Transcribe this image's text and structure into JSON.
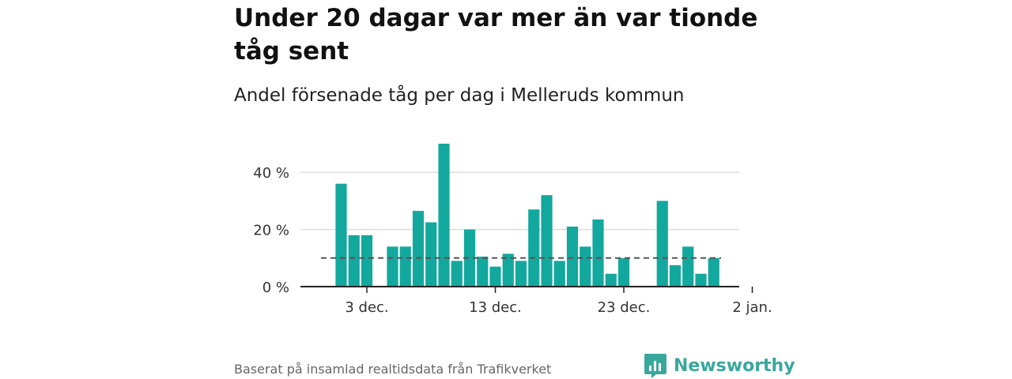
{
  "title": "Under 20 dagar var mer än var tionde tåg sent",
  "subtitle": "Andel försenade tåg per dag i Melleruds kommun",
  "footer": {
    "source": "Baserat på insamlad realtidsdata från Trafikverket",
    "brand": "Newsworthy"
  },
  "colors": {
    "bar": "#13a89e",
    "reference_line": "#555555",
    "grid": "#dddddd",
    "brand": "#3aa79d"
  },
  "icons": {
    "logo": "newsworthy-logo-icon"
  },
  "chart_data": {
    "type": "bar",
    "x_start_date": "2019-12-01",
    "x": [
      "2019-12-01",
      "2019-12-02",
      "2019-12-03",
      "2019-12-04",
      "2019-12-05",
      "2019-12-06",
      "2019-12-07",
      "2019-12-08",
      "2019-12-09",
      "2019-12-10",
      "2019-12-11",
      "2019-12-12",
      "2019-12-13",
      "2019-12-14",
      "2019-12-15",
      "2019-12-16",
      "2019-12-17",
      "2019-12-18",
      "2019-12-19",
      "2019-12-20",
      "2019-12-21",
      "2019-12-22",
      "2019-12-23",
      "2019-12-24",
      "2019-12-25",
      "2019-12-26",
      "2019-12-27",
      "2019-12-28",
      "2019-12-29",
      "2019-12-30"
    ],
    "values": [
      36,
      18,
      18,
      null,
      14,
      14,
      26.5,
      22.5,
      50,
      9,
      20,
      10.5,
      7,
      11.5,
      9,
      27,
      32,
      9,
      21,
      14,
      23.5,
      4.5,
      10,
      null,
      null,
      30,
      7.5,
      14,
      4.5,
      10
    ],
    "reference_value": 10,
    "ylim": [
      0,
      50
    ],
    "yticks": [
      0,
      20,
      40
    ],
    "ytick_labels": [
      "0 %",
      "20 %",
      "40 %"
    ],
    "xticks": [
      "2019-12-03",
      "2019-12-13",
      "2019-12-23",
      "2020-01-02"
    ],
    "xtick_labels": [
      "3 dec.",
      "13 dec.",
      "23 dec.",
      "2 jan."
    ],
    "grid": true,
    "xlabel": "",
    "ylabel": ""
  }
}
